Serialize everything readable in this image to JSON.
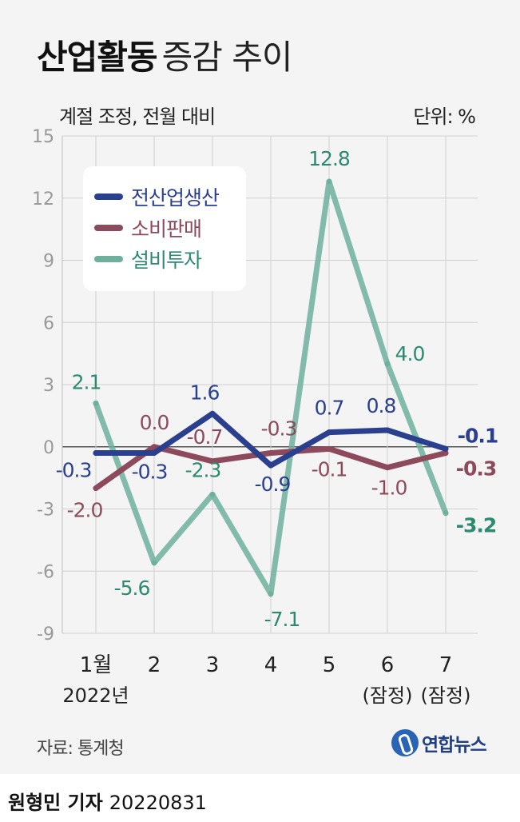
{
  "header": {
    "title_bold": "산업활동",
    "title_light": "증감 추이",
    "subtitle": "계절 조정, 전월 대비",
    "unit": "단위: %"
  },
  "footer": {
    "source": "자료: 통계청",
    "logo_text": "연합뉴스",
    "reporter": "원형민 기자",
    "date": "20220831"
  },
  "colors": {
    "production": "#2b3f8f",
    "consumption": "#8c4a5c",
    "investment": "#6fb09d",
    "investment_label": "#2a8a72",
    "axis": "#999999",
    "grid": "#d0d0d0"
  },
  "chart_data": {
    "type": "line",
    "title": "산업활동 증감 추이",
    "subtitle": "계절 조정, 전월 대비",
    "unit": "%",
    "ylim": [
      -9,
      15
    ],
    "yticks": [
      15,
      12,
      9,
      6,
      3,
      0,
      -3,
      -6,
      -9
    ],
    "grid": true,
    "legend_position": "top-left",
    "categories": [
      "1월",
      "2",
      "3",
      "4",
      "5",
      "6",
      "7"
    ],
    "category_sublabels": [
      "2022년",
      "",
      "",
      "",
      "",
      "(잠정)",
      "(잠정)"
    ],
    "series": [
      {
        "name": "전산업생산",
        "values": [
          -0.3,
          -0.3,
          1.6,
          -0.9,
          0.7,
          0.8,
          -0.1
        ]
      },
      {
        "name": "소비판매",
        "values": [
          -2.0,
          0.0,
          -0.7,
          -0.3,
          -0.1,
          -1.0,
          -0.3
        ]
      },
      {
        "name": "설비투자",
        "values": [
          2.1,
          -5.6,
          -2.3,
          -7.1,
          12.8,
          4.0,
          -3.2
        ]
      }
    ],
    "data_labels": {
      "production": [
        "-0.3",
        "-0.3",
        "1.6",
        "-0.9",
        "0.7",
        "0.8",
        "-0.1"
      ],
      "consumption": [
        "-2.0",
        "0.0",
        "-0.7",
        "-0.3",
        "-0.1",
        "-1.0",
        "-0.3"
      ],
      "investment": [
        "2.1",
        "-5.6",
        "-2.3",
        "-7.1",
        "12.8",
        "4.0",
        "-3.2"
      ]
    }
  }
}
